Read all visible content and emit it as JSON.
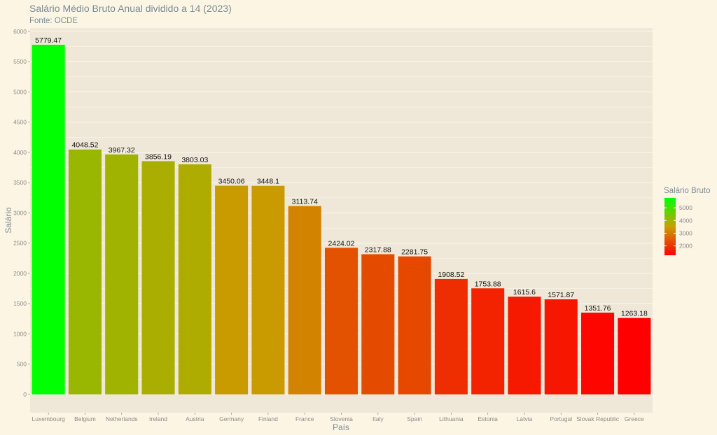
{
  "chart_data": {
    "type": "bar",
    "title": "Salário Médio Bruto Anual dividido a 14 (2023)",
    "subtitle": "Fonte: OCDE",
    "xlabel": "País",
    "ylabel": "Salário",
    "ylim": [
      0,
      6150
    ],
    "yticks": [
      0,
      500,
      1000,
      1500,
      2000,
      2500,
      3000,
      3500,
      4000,
      4500,
      5000,
      5500,
      6000
    ],
    "grid": true,
    "categories": [
      "Luxembourg",
      "Belgium",
      "Netherlands",
      "Ireland",
      "Austria",
      "Germany",
      "Finland",
      "France",
      "Slovenia",
      "Italy",
      "Spain",
      "Lithuania",
      "Estonia",
      "Latvia",
      "Portugal",
      "Slovak Republic",
      "Greece"
    ],
    "values": [
      5779.47,
      4048.52,
      3967.32,
      3856.19,
      3803.03,
      3450.06,
      3448.1,
      3113.74,
      2424.02,
      2317.88,
      2281.75,
      1908.52,
      1753.88,
      1615.6,
      1571.87,
      1351.76,
      1263.18
    ],
    "labels": [
      "5779.47",
      "4048.52",
      "3967.32",
      "3856.19",
      "3803.03",
      "3450.06",
      "3448.1",
      "3113.74",
      "2424.02",
      "2317.88",
      "2281.75",
      "1908.52",
      "1753.88",
      "1615.6",
      "1571.87",
      "1351.76",
      "1263.18"
    ],
    "legend": {
      "title": "Salário Bruto",
      "position": "right",
      "ticks": [
        2000,
        3000,
        4000,
        5000
      ],
      "color_low": "#ff0000",
      "color_high": "#00ff00"
    },
    "colors": {
      "background": "#fdf5e4",
      "panel": "#efe8d8",
      "grid": "#fbf8ef"
    }
  }
}
